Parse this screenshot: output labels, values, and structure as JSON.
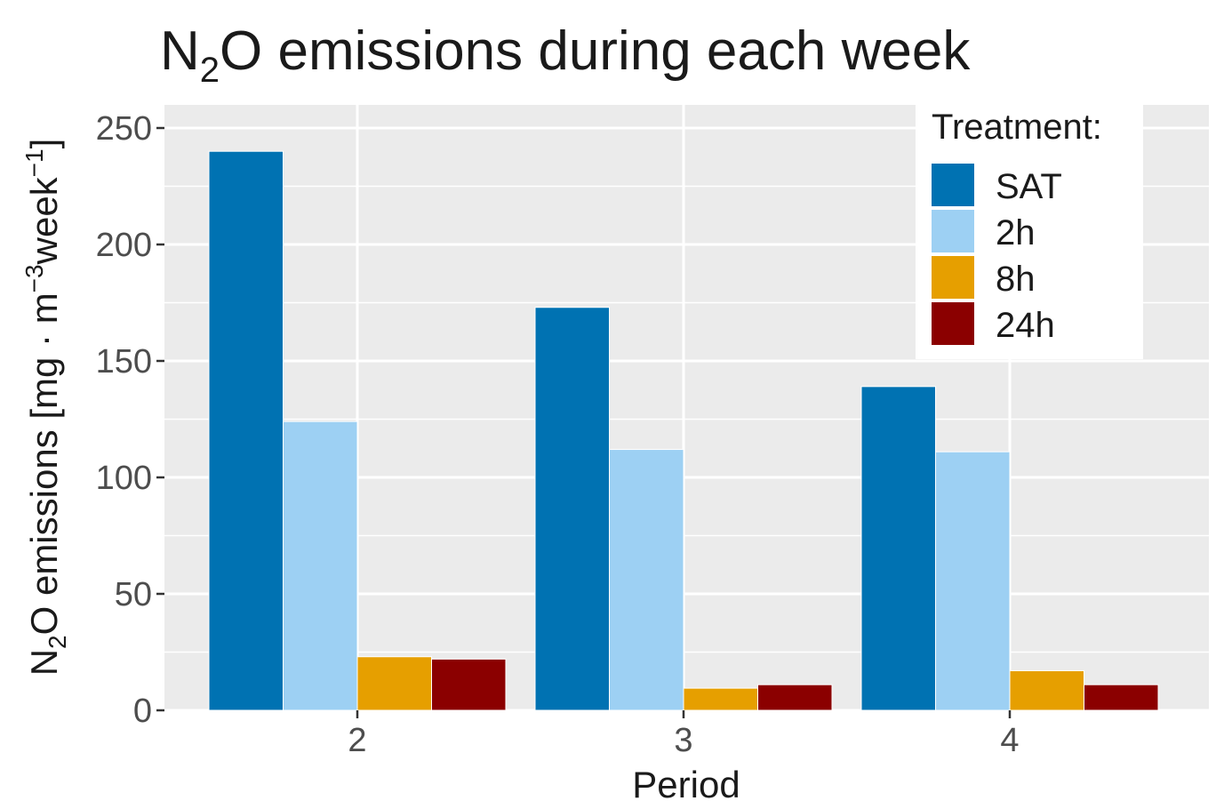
{
  "chart_data": {
    "type": "bar",
    "title_parts": {
      "pre": "N",
      "sub": "2",
      "post": "O emissions during each week"
    },
    "xlabel": "Period",
    "ylabel_parts": {
      "n": "N",
      "n_sub": "2",
      "rest": "O emissions [mg · m",
      "m_sup": "−3",
      "week": "week",
      "week_sup": "−1",
      "close": "]"
    },
    "categories": [
      "2",
      "3",
      "4"
    ],
    "ylim": [
      0,
      260
    ],
    "yticks": [
      {
        "value": 0,
        "label": "0"
      },
      {
        "value": 50,
        "label": "50"
      },
      {
        "value": 100,
        "label": "100"
      },
      {
        "value": 150,
        "label": "150"
      },
      {
        "value": 200,
        "label": "200"
      },
      {
        "value": 250,
        "label": "250"
      }
    ],
    "grid": true,
    "legend_title": "Treatment:",
    "legend_placement": "top-right",
    "series": [
      {
        "name": "SAT",
        "color": "#0072B2",
        "values": [
          240,
          173,
          139
        ]
      },
      {
        "name": "2h",
        "color": "#9DD0F3",
        "values": [
          124,
          112,
          111
        ]
      },
      {
        "name": "8h",
        "color": "#E69F00",
        "values": [
          23,
          9.5,
          17
        ]
      },
      {
        "name": "24h",
        "color": "#8B0000",
        "values": [
          22,
          11,
          11
        ]
      }
    ]
  }
}
